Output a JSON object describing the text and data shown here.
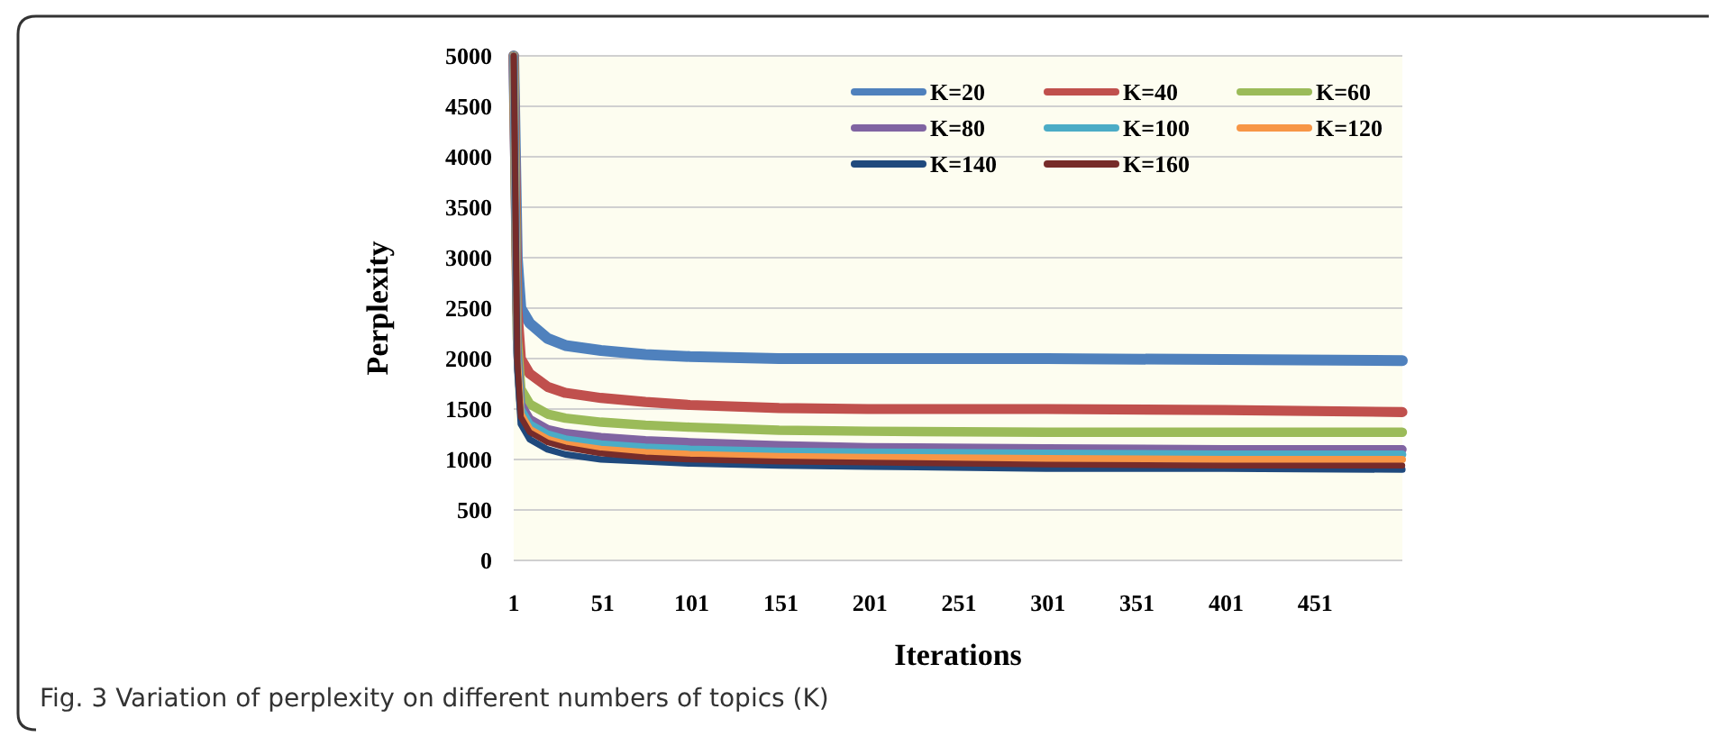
{
  "chart_data": {
    "type": "line",
    "xlabel": "Iterations",
    "ylabel": "Perplexity",
    "x": [
      1,
      3,
      5,
      10,
      20,
      30,
      50,
      75,
      100,
      150,
      200,
      300,
      400,
      500
    ],
    "xlim": [
      1,
      500
    ],
    "xticks": [
      1,
      51,
      101,
      151,
      201,
      251,
      301,
      351,
      401,
      451
    ],
    "ylim": [
      0,
      5000
    ],
    "yticks": [
      0,
      500,
      1000,
      1500,
      2000,
      2500,
      3000,
      3500,
      4000,
      4500,
      5000
    ],
    "grid": "y",
    "legend": "top right",
    "line_style": "solid",
    "marker": "none",
    "series": [
      {
        "name": "K=20",
        "color": "#4f81bd",
        "values": [
          5000,
          3000,
          2500,
          2350,
          2200,
          2130,
          2080,
          2040,
          2020,
          2000,
          2000,
          2000,
          1990,
          1980
        ]
      },
      {
        "name": "K=40",
        "color": "#c0504d",
        "values": [
          5000,
          2500,
          2000,
          1850,
          1720,
          1660,
          1610,
          1570,
          1540,
          1510,
          1500,
          1500,
          1490,
          1470
        ]
      },
      {
        "name": "K=60",
        "color": "#9bbb59",
        "values": [
          5000,
          2200,
          1700,
          1550,
          1450,
          1410,
          1370,
          1340,
          1320,
          1290,
          1280,
          1270,
          1270,
          1270
        ]
      },
      {
        "name": "K=80",
        "color": "#8064a2",
        "values": [
          5000,
          2100,
          1550,
          1400,
          1300,
          1260,
          1220,
          1190,
          1170,
          1140,
          1120,
          1110,
          1100,
          1100
        ]
      },
      {
        "name": "K=100",
        "color": "#4bacc6",
        "values": [
          5000,
          2050,
          1500,
          1350,
          1250,
          1200,
          1150,
          1120,
          1100,
          1080,
          1070,
          1060,
          1050,
          1050
        ]
      },
      {
        "name": "K=120",
        "color": "#f79646",
        "values": [
          5000,
          2000,
          1450,
          1300,
          1200,
          1150,
          1100,
          1070,
          1050,
          1030,
          1020,
          1010,
          1000,
          1000
        ]
      },
      {
        "name": "K=140",
        "color": "#1f497d",
        "values": [
          5000,
          1900,
          1350,
          1200,
          1100,
          1050,
          1000,
          980,
          960,
          940,
          930,
          910,
          910,
          900
        ]
      },
      {
        "name": "K=160",
        "color": "#772c2a",
        "values": [
          5000,
          1980,
          1420,
          1270,
          1170,
          1120,
          1060,
          1020,
          1000,
          980,
          970,
          950,
          940,
          940
        ]
      }
    ],
    "annotations": [
      "Fig. 3 Variation of perplexity on different numbers of topics (K)"
    ]
  }
}
